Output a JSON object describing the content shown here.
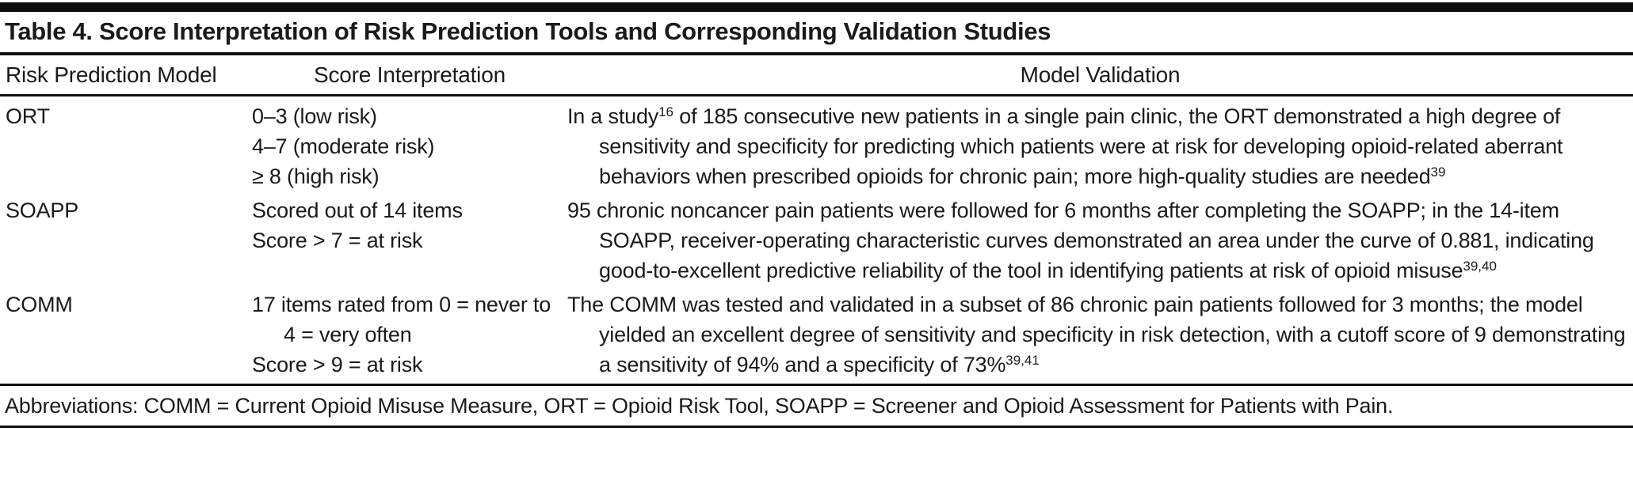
{
  "colors": {
    "background": "#ffffff",
    "text": "#1c1a19",
    "rule": "#0c0b0a"
  },
  "table": {
    "title": "Table 4. Score Interpretation of Risk Prediction Tools and Corresponding Validation Studies",
    "columns": [
      "Risk Prediction Model",
      "Score Interpretation",
      "Model Validation"
    ],
    "rows": [
      {
        "model": "ORT",
        "score_interpretation": [
          "0–3 (low risk)",
          "4–7 (moderate risk)",
          "≥ 8 (high risk)"
        ],
        "validation": [
          {
            "text": "In a study"
          },
          {
            "sup": "16"
          },
          {
            "text": " of 185 consecutive new patients in a single pain clinic, the ORT demonstrated a high degree of sensitivity and specificity for predicting which patients were at risk for developing opioid-related aberrant behaviors when prescribed opioids for chronic pain; more high-quality studies are needed"
          },
          {
            "sup": "39"
          }
        ]
      },
      {
        "model": "SOAPP",
        "score_interpretation": [
          "Scored out of 14 items",
          "Score > 7 = at risk"
        ],
        "validation": [
          {
            "text": "95 chronic noncancer pain patients were followed for 6 months after completing the SOAPP; in the 14-item SOAPP, receiver-operating characteristic curves demonstrated an area under the curve of 0.881, indicating good-to-excellent predictive reliability of the tool in identifying patients at risk of opioid misuse"
          },
          {
            "sup": "39,40"
          }
        ]
      },
      {
        "model": "COMM",
        "score_interpretation": [
          "17 items rated from 0 = never to 4 = very often",
          "Score > 9 = at risk"
        ],
        "validation": [
          {
            "text": "The COMM was tested and validated in a subset of 86 chronic pain patients followed for 3 months; the model yielded an excellent degree of sensitivity and specificity in risk detection, with a cutoff score of 9 demonstrating a sensitivity of 94% and a specificity of 73%"
          },
          {
            "sup": "39,41"
          }
        ]
      }
    ],
    "footnote": "Abbreviations: COMM = Current Opioid Misuse Measure, ORT = Opioid Risk Tool, SOAPP = Screener and Opioid Assessment for Patients with Pain."
  }
}
